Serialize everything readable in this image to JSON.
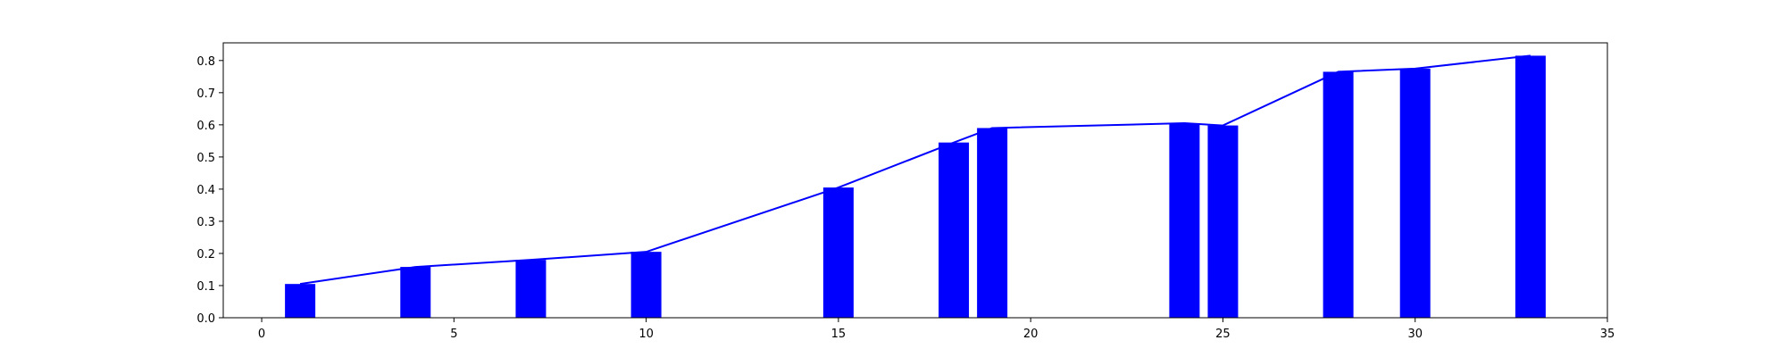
{
  "chart_data": {
    "type": "bar",
    "x": [
      1,
      4,
      7,
      10,
      15,
      18,
      19,
      24,
      25,
      28,
      30,
      33
    ],
    "values": [
      0.105,
      0.158,
      0.18,
      0.205,
      0.405,
      0.545,
      0.59,
      0.605,
      0.598,
      0.765,
      0.775,
      0.815
    ],
    "line": {
      "x": [
        1,
        4,
        7,
        10,
        15,
        18,
        19,
        24,
        25,
        28,
        30,
        33
      ],
      "y": [
        0.105,
        0.158,
        0.18,
        0.205,
        0.405,
        0.545,
        0.59,
        0.605,
        0.598,
        0.765,
        0.775,
        0.815
      ]
    },
    "title": "",
    "xlabel": "",
    "ylabel": "",
    "xlim": [
      -1,
      35
    ],
    "ylim": [
      0,
      0.855
    ],
    "xticks": [
      0,
      5,
      10,
      15,
      20,
      25,
      30,
      35
    ],
    "xtick_labels": [
      "0",
      "5",
      "10",
      "15",
      "20",
      "25",
      "30",
      "35"
    ],
    "yticks": [
      0.0,
      0.1,
      0.2,
      0.3,
      0.4,
      0.5,
      0.6,
      0.7,
      0.8
    ],
    "ytick_labels": [
      "0.0",
      "0.1",
      "0.2",
      "0.3",
      "0.4",
      "0.5",
      "0.6",
      "0.7",
      "0.8"
    ],
    "grid": false,
    "legend": "none",
    "bar_color": "#0000ff",
    "line_color": "#0000ff"
  }
}
